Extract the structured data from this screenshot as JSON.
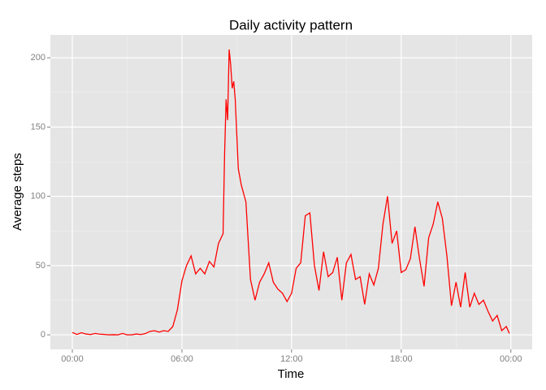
{
  "chart_data": {
    "type": "line",
    "title": "Daily activity pattern",
    "x_label": "Time",
    "y_label": "Average steps",
    "x": [
      0,
      15,
      30,
      45,
      60,
      75,
      90,
      105,
      120,
      135,
      150,
      165,
      180,
      195,
      210,
      225,
      240,
      255,
      270,
      285,
      300,
      315,
      330,
      345,
      360,
      375,
      390,
      405,
      420,
      435,
      450,
      465,
      480,
      495,
      500,
      505,
      510,
      515,
      520,
      525,
      530,
      535,
      545,
      555,
      570,
      585,
      600,
      615,
      630,
      645,
      660,
      675,
      690,
      705,
      720,
      735,
      750,
      765,
      780,
      795,
      810,
      825,
      840,
      855,
      870,
      885,
      900,
      915,
      930,
      945,
      960,
      975,
      990,
      1005,
      1020,
      1035,
      1050,
      1065,
      1080,
      1095,
      1110,
      1125,
      1140,
      1155,
      1170,
      1185,
      1200,
      1215,
      1230,
      1245,
      1260,
      1275,
      1290,
      1305,
      1320,
      1335,
      1350,
      1365,
      1380,
      1395,
      1410,
      1425,
      1435
    ],
    "values": [
      1.7,
      0.3,
      1.5,
      0.6,
      0.2,
      1,
      0.5,
      0.3,
      0,
      0.1,
      0,
      1,
      0,
      0,
      0.6,
      0.2,
      0.9,
      2.5,
      3,
      2,
      3,
      2.5,
      6,
      18,
      39,
      50,
      57,
      44,
      48,
      44,
      53,
      49,
      66,
      73,
      130,
      170,
      155,
      206,
      195,
      178,
      183,
      170,
      120,
      108,
      96,
      40,
      25,
      38,
      44,
      52,
      38,
      33,
      30,
      24,
      30,
      48,
      52,
      86,
      88,
      50,
      32,
      60,
      42,
      45,
      56,
      25,
      52,
      58,
      40,
      42,
      22,
      44,
      36,
      48,
      80,
      100,
      66,
      75,
      45,
      47,
      55,
      78,
      55,
      35,
      70,
      80,
      96,
      84,
      57,
      21,
      38,
      20,
      45,
      20,
      30,
      22,
      25,
      17,
      10,
      14,
      3,
      6,
      1
    ],
    "color": "#ff0000",
    "xlim": [
      -72,
      1510
    ],
    "ylim": [
      -10.5,
      216.5
    ],
    "xticks": [
      {
        "value": 0,
        "label": "00:00"
      },
      {
        "value": 360,
        "label": "06:00"
      },
      {
        "value": 720,
        "label": "12:00"
      },
      {
        "value": 1080,
        "label": "18:00"
      },
      {
        "value": 1440,
        "label": "00:00"
      }
    ],
    "yticks": [
      0,
      50,
      100,
      150,
      200
    ],
    "grid": true
  }
}
